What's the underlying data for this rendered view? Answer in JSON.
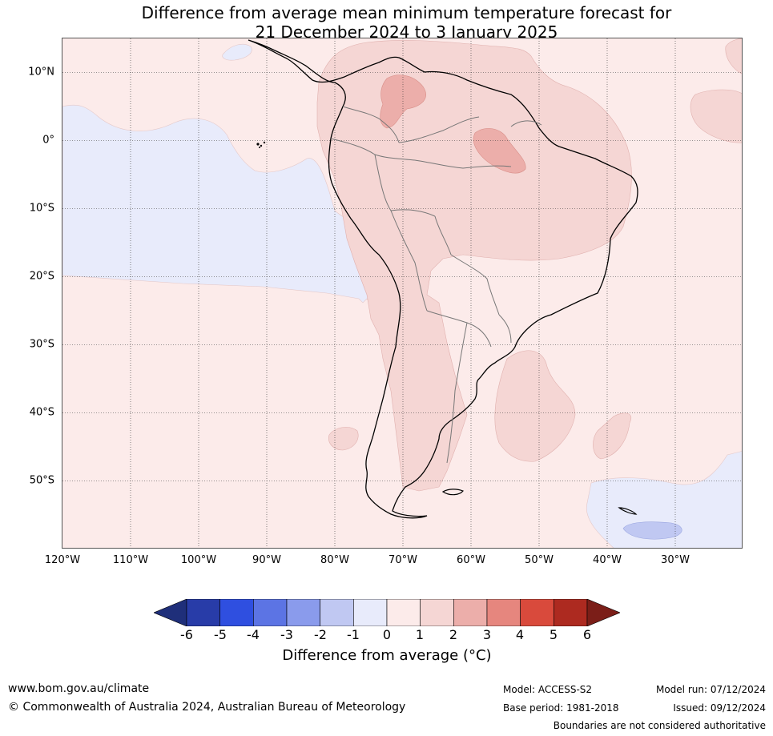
{
  "title": {
    "line1": "Difference from average mean minimum temperature forecast for",
    "line2": "21 December 2024 to 3 January 2025"
  },
  "map": {
    "extent": {
      "lon_min": -120,
      "lon_max": -20,
      "lat_min": -60,
      "lat_max": 15
    },
    "lat_ticks": [
      {
        "value": 10,
        "label": "10°N"
      },
      {
        "value": 0,
        "label": "0°"
      },
      {
        "value": -10,
        "label": "10°S"
      },
      {
        "value": -20,
        "label": "20°S"
      },
      {
        "value": -30,
        "label": "30°S"
      },
      {
        "value": -40,
        "label": "40°S"
      },
      {
        "value": -50,
        "label": "50°S"
      }
    ],
    "lon_ticks": [
      {
        "value": -120,
        "label": "120°W"
      },
      {
        "value": -110,
        "label": "110°W"
      },
      {
        "value": -100,
        "label": "100°W"
      },
      {
        "value": -90,
        "label": "90°W"
      },
      {
        "value": -80,
        "label": "80°W"
      },
      {
        "value": -70,
        "label": "70°W"
      },
      {
        "value": -60,
        "label": "60°W"
      },
      {
        "value": -50,
        "label": "50°W"
      },
      {
        "value": -40,
        "label": "40°W"
      },
      {
        "value": -30,
        "label": "30°W"
      }
    ],
    "gridlines": true
  },
  "colorbar": {
    "ticks": [
      "-6",
      "-5",
      "-4",
      "-3",
      "-2",
      "-1",
      "0",
      "1",
      "2",
      "3",
      "4",
      "5",
      "6"
    ],
    "colors": [
      "#283ca8",
      "#2f4fe0",
      "#5c74e4",
      "#8a9bec",
      "#c0c8f2",
      "#e8ebfb",
      "#fcebea",
      "#f5d6d4",
      "#ecaeaa",
      "#e6867e",
      "#d94a3c",
      "#ad2a20"
    ],
    "under_color": "#1f2f7a",
    "over_color": "#7b1e18",
    "label": "Difference from average (°C)"
  },
  "footer": {
    "website": "www.bom.gov.au/climate",
    "copyright": "© Commonwealth of Australia 2024, Australian Bureau of Meteorology",
    "model": "Model: ACCESS-S2",
    "base_period": "Base period: 1981-2018",
    "model_run": "Model run: 07/12/2024",
    "issued": "Issued: 09/12/2024",
    "disclaimer": "Boundaries are not considered authoritative"
  }
}
